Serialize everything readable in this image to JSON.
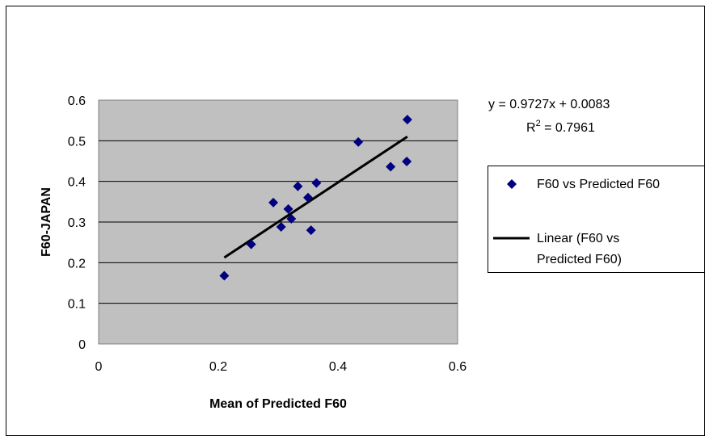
{
  "chart_data": {
    "type": "scatter",
    "title": "",
    "xlabel": "Mean of Predicted F60",
    "ylabel": "F60-JAPAN",
    "xlim": [
      0,
      0.6
    ],
    "ylim": [
      0,
      0.6
    ],
    "x_ticks": [
      "0",
      "0.2",
      "0.4",
      "0.6"
    ],
    "y_ticks": [
      "0",
      "0.1",
      "0.2",
      "0.3",
      "0.4",
      "0.5",
      "0.6"
    ],
    "x_tick_values": [
      0,
      0.2,
      0.4,
      0.6
    ],
    "y_tick_values": [
      0,
      0.1,
      0.2,
      0.3,
      0.4,
      0.5,
      0.6
    ],
    "grid": "horizontal",
    "plot_background": "#C0C0C0",
    "series": [
      {
        "name": "F60 vs Predicted F60",
        "color": "#000080",
        "marker": "diamond",
        "points": [
          {
            "x": 0.21,
            "y": 0.168
          },
          {
            "x": 0.255,
            "y": 0.245
          },
          {
            "x": 0.292,
            "y": 0.348
          },
          {
            "x": 0.305,
            "y": 0.288
          },
          {
            "x": 0.317,
            "y": 0.332
          },
          {
            "x": 0.322,
            "y": 0.308
          },
          {
            "x": 0.333,
            "y": 0.388
          },
          {
            "x": 0.35,
            "y": 0.36
          },
          {
            "x": 0.355,
            "y": 0.28
          },
          {
            "x": 0.364,
            "y": 0.396
          },
          {
            "x": 0.434,
            "y": 0.497
          },
          {
            "x": 0.488,
            "y": 0.436
          },
          {
            "x": 0.515,
            "y": 0.449
          },
          {
            "x": 0.516,
            "y": 0.552
          }
        ]
      }
    ],
    "trendline": {
      "name": "Linear (F60 vs Predicted F60)",
      "color": "#000000",
      "slope": 0.9727,
      "intercept": 0.0083,
      "x_range": [
        0.21,
        0.516
      ]
    },
    "legend_position": "right",
    "annotations": {
      "equation": "y = 0.9727x + 0.0083",
      "r_squared_prefix": "R",
      "r_squared_exp": "2",
      "r_squared_suffix": " = 0.7961"
    },
    "legend": {
      "series_label": "F60 vs Predicted F60",
      "trend_label_line1": "Linear (F60 vs",
      "trend_label_line2": "Predicted F60)"
    }
  }
}
